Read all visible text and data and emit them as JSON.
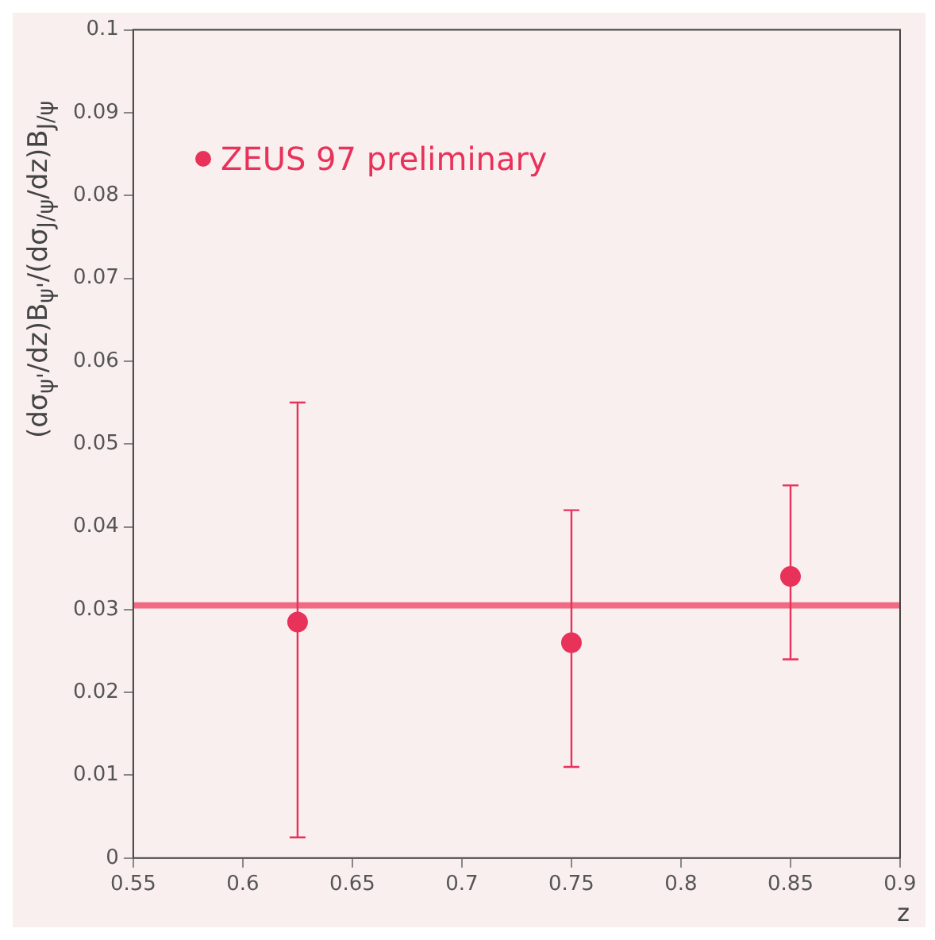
{
  "chart_data": {
    "type": "scatter",
    "xlabel": "z",
    "ylabel": "(dσ$_{ψ'}$/dz)B$_{ψ'}$/(dσ$_{J/ψ}$/dz)B$_{J/ψ}$",
    "x": [
      0.625,
      0.75,
      0.85
    ],
    "series": [
      {
        "name": "ZEUS 97 preliminary",
        "color": "#e8325a",
        "values": [
          0.0285,
          0.026,
          0.034
        ],
        "errors": [
          [
            0.0025,
            0.055
          ],
          [
            0.011,
            0.042
          ],
          [
            0.024,
            0.045
          ]
        ]
      }
    ],
    "ref_lines": [
      {
        "axis": "y",
        "value": 0.0305,
        "color": "#f06a84"
      }
    ],
    "xlim": [
      0.55,
      0.9
    ],
    "xticks": [
      0.55,
      0.6,
      0.65,
      0.7,
      0.75,
      0.8,
      0.85,
      0.9
    ],
    "ylim": [
      0,
      0.1
    ],
    "yticks": [
      0,
      0.01,
      0.02,
      0.03,
      0.04,
      0.05,
      0.06,
      0.07,
      0.08,
      0.09,
      0.1
    ],
    "marker": "circle",
    "grid": false,
    "legend": "top left"
  }
}
